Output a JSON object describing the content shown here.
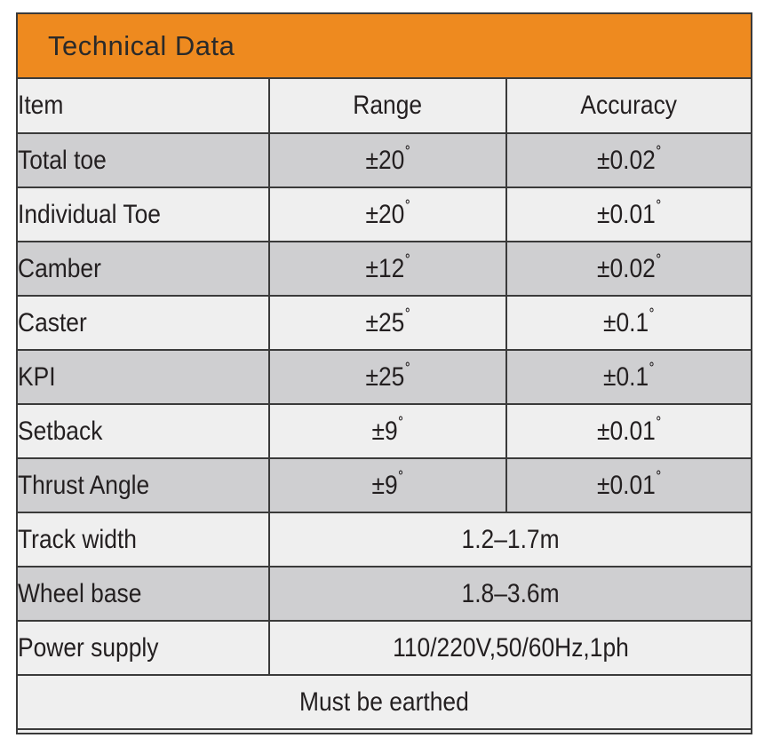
{
  "title": "Technical Data",
  "header": {
    "item": "Item",
    "range": "Range",
    "accuracy": "Accuracy"
  },
  "rows": [
    {
      "item": "Total toe",
      "range": "±20",
      "accuracy": "±0.02"
    },
    {
      "item": "Individual Toe",
      "range": "±20",
      "accuracy": "±0.01"
    },
    {
      "item": "Camber",
      "range": "±12",
      "accuracy": "±0.02"
    },
    {
      "item": "Caster",
      "range": "±25",
      "accuracy": "±0.1"
    },
    {
      "item": "KPI",
      "range": "±25",
      "accuracy": "±0.1"
    },
    {
      "item": "Setback",
      "range": "±9",
      "accuracy": "±0.01"
    },
    {
      "item": "Thrust Angle",
      "range": "±9",
      "accuracy": "±0.01"
    }
  ],
  "merged_rows": [
    {
      "item": "Track width",
      "value": "1.2–1.7m"
    },
    {
      "item": "Wheel base",
      "value": "1.8–3.6m"
    },
    {
      "item": "Power supply",
      "value": "110/220V,50/60Hz,1ph"
    }
  ],
  "degree_symbol": "˚",
  "footer": "Must be earthed",
  "colors": {
    "title_bar": "#ee8a1f",
    "shaded_row": "#cfcfd1",
    "light_row": "#efefef",
    "border": "#3a3a3a"
  }
}
